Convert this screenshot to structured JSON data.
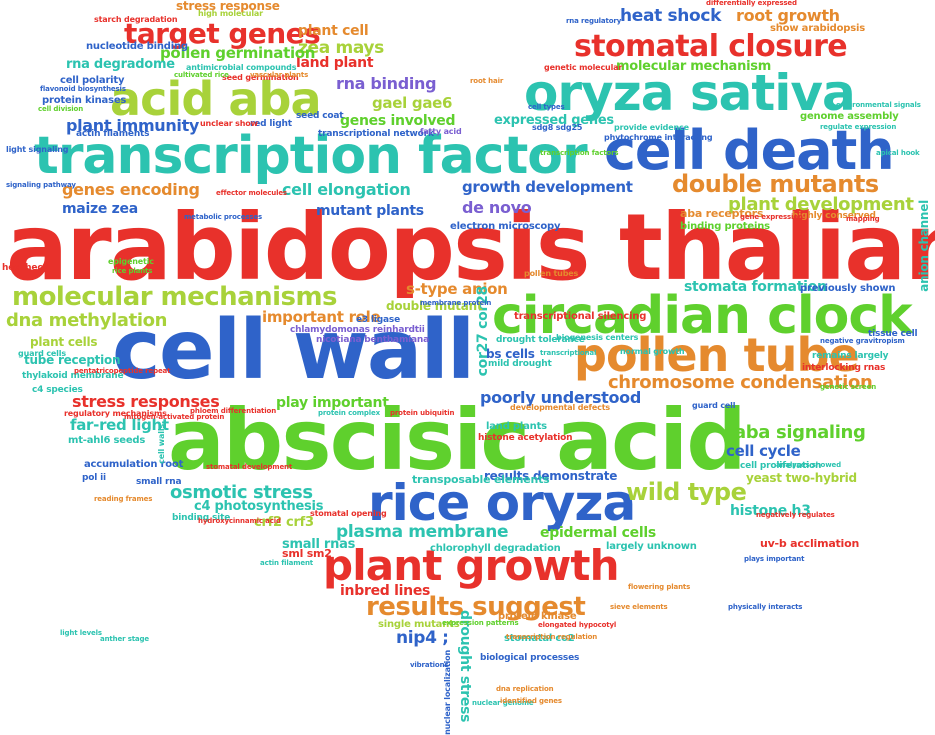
{
  "colors": {
    "red": "#e8312b",
    "green": "#5fd02d",
    "blue": "#2f63c9",
    "orange": "#e58a2e",
    "teal": "#2cc3b0",
    "lime": "#a8d23a",
    "violet": "#7a5fd1",
    "gray": "#9aa0a6"
  },
  "words": [
    {
      "text": "arabidopsis thaliana",
      "size": 92,
      "color": "red"
    },
    {
      "text": "abscisic acid",
      "size": 84,
      "color": "green"
    },
    {
      "text": "cell wall",
      "size": 82,
      "color": "blue"
    },
    {
      "text": "transcription factor",
      "size": 52,
      "color": "teal"
    },
    {
      "text": "cell death",
      "size": 54,
      "color": "blue"
    },
    {
      "text": "circadian clock",
      "size": 52,
      "color": "green"
    },
    {
      "text": "oryza sativa",
      "size": 50,
      "color": "teal"
    },
    {
      "text": "rice oryza",
      "size": 50,
      "color": "blue"
    },
    {
      "text": "pollen tube",
      "size": 46,
      "color": "orange"
    },
    {
      "text": "plant growth",
      "size": 42,
      "color": "red"
    },
    {
      "text": "acid aba",
      "size": 46,
      "color": "lime"
    },
    {
      "text": "stomatal closure",
      "size": 30,
      "color": "red"
    },
    {
      "text": "target genes",
      "size": 28,
      "color": "red"
    },
    {
      "text": "molecular mechanisms",
      "size": 26,
      "color": "lime"
    },
    {
      "text": "double mutants",
      "size": 24,
      "color": "orange"
    },
    {
      "text": "results suggest",
      "size": 26,
      "color": "orange"
    },
    {
      "text": "wild type",
      "size": 24,
      "color": "lime"
    },
    {
      "text": "chromosome condensation",
      "size": 18,
      "color": "orange"
    },
    {
      "text": "dna methylation",
      "size": 18,
      "color": "lime"
    },
    {
      "text": "osmotic stress",
      "size": 18,
      "color": "teal"
    },
    {
      "text": "plasma membrane",
      "size": 17,
      "color": "teal"
    },
    {
      "text": "aba signaling",
      "size": 18,
      "color": "green"
    },
    {
      "text": "plant development",
      "size": 18,
      "color": "lime"
    },
    {
      "text": "stress responses",
      "size": 16,
      "color": "red"
    },
    {
      "text": "genes encoding",
      "size": 16,
      "color": "orange"
    },
    {
      "text": "heat shock",
      "size": 17,
      "color": "blue"
    },
    {
      "text": "root growth",
      "size": 16,
      "color": "orange"
    },
    {
      "text": "zea mays",
      "size": 17,
      "color": "lime"
    },
    {
      "text": "plant cell",
      "size": 14,
      "color": "orange"
    },
    {
      "text": "land plant",
      "size": 14,
      "color": "red"
    },
    {
      "text": "pollen germination",
      "size": 15,
      "color": "green"
    },
    {
      "text": "rna binding",
      "size": 16,
      "color": "violet"
    },
    {
      "text": "gael gae6",
      "size": 15,
      "color": "lime"
    },
    {
      "text": "genes involved",
      "size": 14,
      "color": "green"
    },
    {
      "text": "plant immunity",
      "size": 16,
      "color": "blue"
    },
    {
      "text": "cell elongation",
      "size": 16,
      "color": "teal"
    },
    {
      "text": "growth development",
      "size": 15,
      "color": "blue"
    },
    {
      "text": "de novo",
      "size": 16,
      "color": "violet"
    },
    {
      "text": "mutant plants",
      "size": 14,
      "color": "blue"
    },
    {
      "text": "maize zea",
      "size": 14,
      "color": "blue"
    },
    {
      "text": "important role",
      "size": 15,
      "color": "orange"
    },
    {
      "text": "s-type anion",
      "size": 15,
      "color": "orange"
    },
    {
      "text": "stomata formation",
      "size": 14,
      "color": "teal"
    },
    {
      "text": "poorly understood",
      "size": 16,
      "color": "blue"
    },
    {
      "text": "play important",
      "size": 14,
      "color": "green"
    },
    {
      "text": "far-red light",
      "size": 15,
      "color": "teal"
    },
    {
      "text": "cell cycle",
      "size": 15,
      "color": "blue"
    },
    {
      "text": "histone h3",
      "size": 14,
      "color": "teal"
    },
    {
      "text": "epidermal cells",
      "size": 14,
      "color": "green"
    },
    {
      "text": "small rnas",
      "size": 13,
      "color": "teal"
    },
    {
      "text": "crf2 crf3",
      "size": 13,
      "color": "lime"
    },
    {
      "text": "c4 photosynthesis",
      "size": 13,
      "color": "teal"
    },
    {
      "text": "inbred lines",
      "size": 14,
      "color": "red"
    },
    {
      "text": "nip4 ;",
      "size": 17,
      "color": "blue"
    },
    {
      "text": "drought stress",
      "size": 14,
      "color": "teal"
    },
    {
      "text": "rna degradome",
      "size": 13,
      "color": "teal"
    },
    {
      "text": "molecular mechanism",
      "size": 13,
      "color": "green"
    },
    {
      "text": "expressed genes",
      "size": 13,
      "color": "teal"
    },
    {
      "text": "stress response",
      "size": 12,
      "color": "orange"
    },
    {
      "text": "cor27 cor28",
      "size": 14,
      "color": "teal"
    },
    {
      "text": "yeast two-hybrid",
      "size": 12,
      "color": "lime"
    },
    {
      "text": "tube reception",
      "size": 12,
      "color": "teal"
    },
    {
      "text": "plant cells",
      "size": 12,
      "color": "lime"
    },
    {
      "text": "bs cells",
      "size": 12,
      "color": "blue"
    },
    {
      "text": "results demonstrate",
      "size": 12,
      "color": "blue"
    },
    {
      "text": "transposable elements",
      "size": 11,
      "color": "teal"
    },
    {
      "text": "double mutant",
      "size": 12,
      "color": "lime"
    },
    {
      "text": "uv-b acclimation",
      "size": 11,
      "color": "red"
    },
    {
      "text": "sml sm2",
      "size": 11,
      "color": "red"
    },
    {
      "text": "anion channel",
      "size": 12,
      "color": "teal"
    },
    {
      "text": "nucleotide binding",
      "size": 10,
      "color": "blue"
    },
    {
      "text": "cell polarity",
      "size": 10,
      "color": "blue"
    },
    {
      "text": "protein kinases",
      "size": 10,
      "color": "blue"
    },
    {
      "text": "genome assembly",
      "size": 10,
      "color": "green"
    },
    {
      "text": "electron microscopy",
      "size": 10,
      "color": "blue"
    },
    {
      "text": "binding proteins",
      "size": 10,
      "color": "green"
    },
    {
      "text": "aba receptors",
      "size": 11,
      "color": "orange"
    },
    {
      "text": "chlamydomonas reinhardtii",
      "size": 9,
      "color": "violet"
    },
    {
      "text": "transcriptional silencing",
      "size": 10,
      "color": "red"
    },
    {
      "text": "previously shown",
      "size": 10,
      "color": "blue"
    },
    {
      "text": "largely unknown",
      "size": 10,
      "color": "teal"
    },
    {
      "text": "chlorophyll degradation",
      "size": 10,
      "color": "teal"
    },
    {
      "text": "mt-ahl6 seeds",
      "size": 10,
      "color": "teal"
    },
    {
      "text": "accumulation root",
      "size": 10,
      "color": "blue"
    },
    {
      "text": "stomatal co2",
      "size": 10,
      "color": "teal"
    },
    {
      "text": "protein kinase",
      "size": 10,
      "color": "orange"
    },
    {
      "text": "single mutants",
      "size": 10,
      "color": "lime"
    },
    {
      "text": "biological processes",
      "size": 9,
      "color": "blue"
    },
    {
      "text": "show arabidopsis",
      "size": 10,
      "color": "orange"
    },
    {
      "text": "histone acetylation",
      "size": 9,
      "color": "red"
    },
    {
      "text": "land plants",
      "size": 10,
      "color": "teal"
    },
    {
      "text": "thylakoid membrane",
      "size": 9,
      "color": "teal"
    },
    {
      "text": "c4 species",
      "size": 9,
      "color": "teal"
    },
    {
      "text": "guard cells",
      "size": 9,
      "color": "teal"
    },
    {
      "text": "binding site",
      "size": 9,
      "color": "teal"
    },
    {
      "text": "transcriptional network",
      "size": 9,
      "color": "blue"
    },
    {
      "text": "seed coat",
      "size": 9,
      "color": "blue"
    },
    {
      "text": "red light",
      "size": 9,
      "color": "blue"
    },
    {
      "text": "actin filaments",
      "size": 9,
      "color": "blue"
    },
    {
      "text": "nicotiana benthamiana",
      "size": 9,
      "color": "violet"
    },
    {
      "text": "mild drought",
      "size": 9,
      "color": "teal"
    },
    {
      "text": "drought tolerance",
      "size": 9,
      "color": "teal"
    },
    {
      "text": "e3 ligase",
      "size": 9,
      "color": "blue"
    },
    {
      "text": "interlocking rnas",
      "size": 9,
      "color": "red"
    },
    {
      "text": "remains largely",
      "size": 9,
      "color": "teal"
    },
    {
      "text": "tissue cell",
      "size": 9,
      "color": "blue"
    },
    {
      "text": "cell proliferation",
      "size": 9,
      "color": "teal"
    },
    {
      "text": "highly conserved",
      "size": 9,
      "color": "orange"
    },
    {
      "text": "light signaling",
      "size": 8,
      "color": "blue"
    },
    {
      "text": "hecl hec2",
      "size": 9,
      "color": "red"
    },
    {
      "text": "pol ii",
      "size": 9,
      "color": "blue"
    },
    {
      "text": "small rna",
      "size": 9,
      "color": "blue"
    },
    {
      "text": "stomatal opening",
      "size": 8,
      "color": "red"
    },
    {
      "text": "sdg8 sdg25",
      "size": 8,
      "color": "blue"
    },
    {
      "text": "phytochrome interacting",
      "size": 8,
      "color": "blue"
    },
    {
      "text": "provide evidence",
      "size": 8,
      "color": "teal"
    },
    {
      "text": "regulatory mechanisms",
      "size": 8,
      "color": "red"
    },
    {
      "text": "genetic molecular",
      "size": 8,
      "color": "red"
    },
    {
      "text": "antimicrobial compounds",
      "size": 8,
      "color": "teal"
    },
    {
      "text": "high molecular",
      "size": 8,
      "color": "lime"
    },
    {
      "text": "starch degradation",
      "size": 8,
      "color": "red"
    },
    {
      "text": "pollen tubes",
      "size": 8,
      "color": "orange"
    },
    {
      "text": "nuclear localization",
      "size": 8,
      "color": "blue"
    },
    {
      "text": "biogenesis centers",
      "size": 8,
      "color": "teal"
    },
    {
      "text": "developmental defects",
      "size": 8,
      "color": "orange"
    },
    {
      "text": "normal growth",
      "size": 8,
      "color": "teal"
    },
    {
      "text": "guard cell",
      "size": 8,
      "color": "blue"
    },
    {
      "text": "epigenetic",
      "size": 8,
      "color": "green"
    },
    {
      "text": "cell walls",
      "size": 8,
      "color": "teal"
    },
    {
      "text": "seed germination",
      "size": 8,
      "color": "red"
    },
    {
      "text": "unclear show",
      "size": 8,
      "color": "red"
    },
    {
      "text": "fatty acid",
      "size": 8,
      "color": "violet"
    },
    {
      "text": "mitogen-activated protein",
      "size": 7,
      "color": "red"
    },
    {
      "text": "stomatal development",
      "size": 7,
      "color": "red"
    },
    {
      "text": "root hair",
      "size": 7,
      "color": "orange"
    },
    {
      "text": "vascular plants",
      "size": 7,
      "color": "orange"
    },
    {
      "text": "differentially expressed",
      "size": 7,
      "color": "red"
    },
    {
      "text": "rna regulatory",
      "size": 7,
      "color": "blue"
    },
    {
      "text": "signaling pathway",
      "size": 7,
      "color": "blue"
    },
    {
      "text": "transcription factors",
      "size": 7,
      "color": "green"
    },
    {
      "text": "protein complex",
      "size": 7,
      "color": "teal"
    },
    {
      "text": "gene expression",
      "size": 7,
      "color": "red"
    },
    {
      "text": "negative gravitropism",
      "size": 7,
      "color": "blue"
    },
    {
      "text": "genetic screen",
      "size": 7,
      "color": "green"
    },
    {
      "text": "expression patterns",
      "size": 7,
      "color": "green"
    },
    {
      "text": "sieve elements",
      "size": 7,
      "color": "orange"
    },
    {
      "text": "flowering plants",
      "size": 7,
      "color": "orange"
    },
    {
      "text": "dna replication",
      "size": 7,
      "color": "orange"
    },
    {
      "text": "nuclear genome",
      "size": 7,
      "color": "teal"
    },
    {
      "text": "identified genes",
      "size": 7,
      "color": "orange"
    },
    {
      "text": "vibrations",
      "size": 7,
      "color": "blue"
    },
    {
      "text": "apical hook",
      "size": 7,
      "color": "teal"
    },
    {
      "text": "regulate expression",
      "size": 7,
      "color": "teal"
    },
    {
      "text": "environmental signals",
      "size": 7,
      "color": "teal"
    },
    {
      "text": "membrane protein",
      "size": 7,
      "color": "blue"
    },
    {
      "text": "phloem differentiation",
      "size": 7,
      "color": "red"
    },
    {
      "text": "pentatricopeptide repeat",
      "size": 7,
      "color": "red"
    },
    {
      "text": "hydroxycinnamic acid",
      "size": 7,
      "color": "red"
    },
    {
      "text": "transcription regulation",
      "size": 7,
      "color": "orange"
    },
    {
      "text": "elongated hypocotyl",
      "size": 7,
      "color": "red"
    },
    {
      "text": "physically interacts",
      "size": 7,
      "color": "blue"
    },
    {
      "text": "mapping",
      "size": 7,
      "color": "red"
    },
    {
      "text": "actin filament",
      "size": 7,
      "color": "teal"
    },
    {
      "text": "plays important",
      "size": 7,
      "color": "blue"
    },
    {
      "text": "analyses showed",
      "size": 7,
      "color": "teal"
    },
    {
      "text": "negatively regulates",
      "size": 7,
      "color": "red"
    },
    {
      "text": "protein ubiquitin",
      "size": 7,
      "color": "red"
    },
    {
      "text": "reading frames",
      "size": 7,
      "color": "orange"
    },
    {
      "text": "light levels",
      "size": 7,
      "color": "teal"
    },
    {
      "text": "anther stage",
      "size": 7,
      "color": "teal"
    },
    {
      "text": "cell division",
      "size": 7,
      "color": "green"
    },
    {
      "text": "flavonoid biosynthesis",
      "size": 7,
      "color": "blue"
    },
    {
      "text": "metabolic processes",
      "size": 7,
      "color": "blue"
    },
    {
      "text": "transcriptional",
      "size": 7,
      "color": "teal"
    },
    {
      "text": "effector molecules",
      "size": 7,
      "color": "red"
    },
    {
      "text": "rice plants",
      "size": 7,
      "color": "green"
    },
    {
      "text": "cultivated rice",
      "size": 7,
      "color": "green"
    },
    {
      "text": "cell types",
      "size": 7,
      "color": "blue"
    },
    {
      "text": "binding domain",
      "size": 7,
      "color": "orange"
    }
  ]
}
